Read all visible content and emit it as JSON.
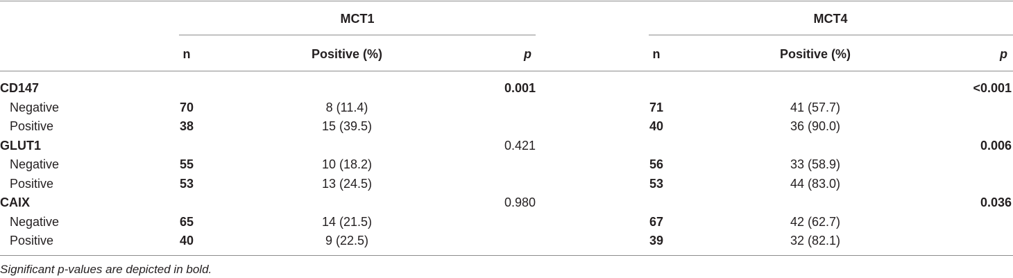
{
  "table": {
    "header": {
      "groups": [
        "MCT1",
        "MCT4"
      ],
      "columns": [
        "n",
        "Positive (%)",
        "p"
      ]
    },
    "groups": [
      {
        "label": "CD147",
        "p": [
          {
            "text": "0.001",
            "significant": true
          },
          {
            "text": "<0.001",
            "significant": true
          }
        ],
        "rows": [
          {
            "label": "Negative",
            "cells": [
              [
                "70",
                "8 (11.4)"
              ],
              [
                "71",
                "41 (57.7)"
              ]
            ]
          },
          {
            "label": "Positive",
            "cells": [
              [
                "38",
                "15 (39.5)"
              ],
              [
                "40",
                "36 (90.0)"
              ]
            ]
          }
        ]
      },
      {
        "label": "GLUT1",
        "p": [
          {
            "text": "0.421",
            "significant": false
          },
          {
            "text": "0.006",
            "significant": true
          }
        ],
        "rows": [
          {
            "label": "Negative",
            "cells": [
              [
                "55",
                "10 (18.2)"
              ],
              [
                "56",
                "33 (58.9)"
              ]
            ]
          },
          {
            "label": "Positive",
            "cells": [
              [
                "53",
                "13 (24.5)"
              ],
              [
                "53",
                "44 (83.0)"
              ]
            ]
          }
        ]
      },
      {
        "label": "CAIX",
        "p": [
          {
            "text": "0.980",
            "significant": false
          },
          {
            "text": "0.036",
            "significant": true
          }
        ],
        "rows": [
          {
            "label": "Negative",
            "cells": [
              [
                "65",
                "14 (21.5)"
              ],
              [
                "67",
                "42 (62.7)"
              ]
            ]
          },
          {
            "label": "Positive",
            "cells": [
              [
                "40",
                "9 (22.5)"
              ],
              [
                "39",
                "32 (82.1)"
              ]
            ]
          }
        ]
      }
    ],
    "footnote": "Significant p-values are depicted in bold."
  }
}
